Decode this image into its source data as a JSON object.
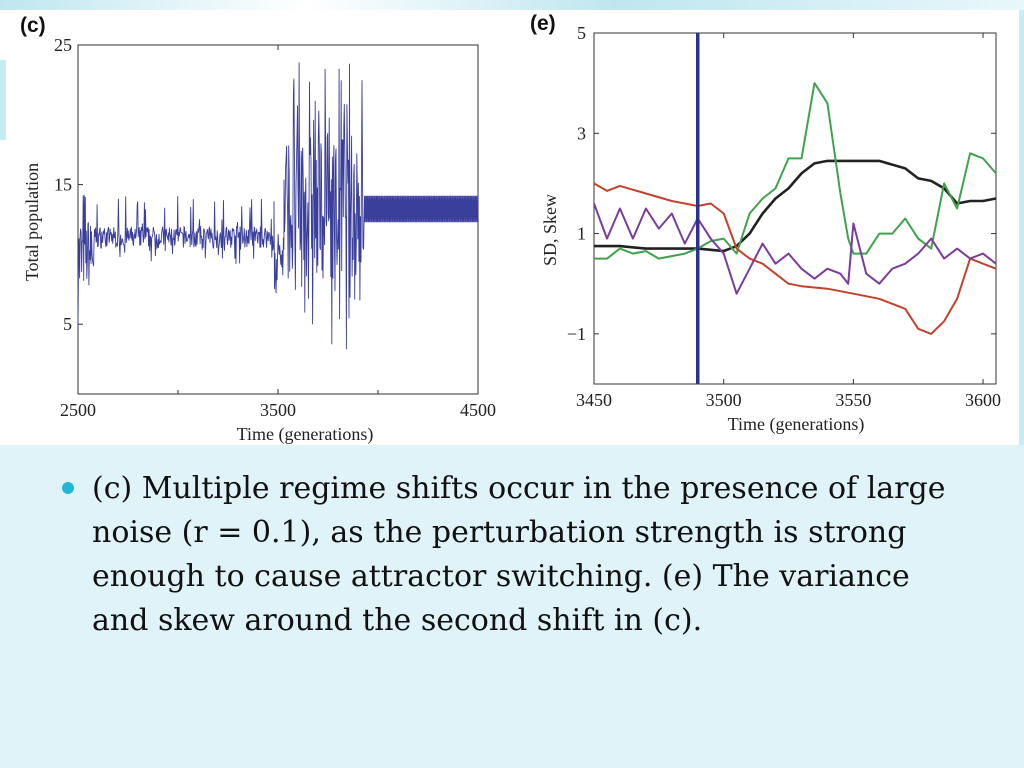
{
  "slide": {
    "bullet_text": "(c) Multiple regime shifts occur in the presence of large noise (r = 0.1), as the perturbation strength is strong enough to cause attractor switching. (e) The variance and skew around the second shift in (c).",
    "colors": {
      "background": "#dff3f8",
      "bullet": "#24b6d6"
    }
  },
  "chart_data": [
    {
      "panel": "(c)",
      "type": "line",
      "xlabel": "Time (generations)",
      "ylabel": "Total population",
      "xlim": [
        2500,
        4500
      ],
      "ylim": [
        0,
        25
      ],
      "xticks": [
        2500,
        3500,
        4500
      ],
      "yticks": [
        5,
        15,
        25
      ],
      "grid": false,
      "series": [
        {
          "color": "#3b3f9c",
          "segments": [
            {
              "x": [
                2500,
                2580
              ],
              "low": 5,
              "high": 15
            },
            {
              "x": [
                2580,
                3480
              ],
              "low": 10.0,
              "high": 13.5
            },
            {
              "x": [
                3480,
                3530
              ],
              "low": 6,
              "high": 14
            },
            {
              "x": [
                3530,
                3930
              ],
              "low": 3,
              "high": 24
            },
            {
              "x": [
                3930,
                4500
              ],
              "low": 12.3,
              "high": 14.2
            }
          ],
          "baseline": 11
        }
      ]
    },
    {
      "panel": "(e)",
      "type": "line",
      "xlabel": "Time (generations)",
      "ylabel": "SD, Skew",
      "xlim": [
        3450,
        3605
      ],
      "ylim": [
        -2,
        5
      ],
      "xticks": [
        3450,
        3500,
        3550,
        3600
      ],
      "yticks": [
        -1,
        1,
        3,
        5
      ],
      "ytick_labels": [
        "−1",
        "1",
        "3",
        "5"
      ],
      "vline_x": 3490,
      "vline_color": "#2a3190",
      "grid": false,
      "series": [
        {
          "color": "#222222",
          "x": [
            3450,
            3460,
            3470,
            3480,
            3490,
            3500,
            3505,
            3510,
            3515,
            3520,
            3525,
            3530,
            3535,
            3540,
            3545,
            3550,
            3560,
            3570,
            3575,
            3580,
            3585,
            3590,
            3595,
            3600,
            3605
          ],
          "y": [
            0.75,
            0.75,
            0.7,
            0.7,
            0.7,
            0.65,
            0.75,
            1.0,
            1.4,
            1.7,
            1.9,
            2.2,
            2.4,
            2.45,
            2.45,
            2.45,
            2.45,
            2.3,
            2.1,
            2.05,
            1.9,
            1.6,
            1.65,
            1.65,
            1.7
          ]
        },
        {
          "color": "#3fa34d",
          "x": [
            3450,
            3455,
            3460,
            3465,
            3470,
            3475,
            3480,
            3485,
            3490,
            3495,
            3500,
            3505,
            3510,
            3515,
            3520,
            3525,
            3530,
            3535,
            3540,
            3545,
            3548,
            3550,
            3555,
            3560,
            3565,
            3570,
            3575,
            3580,
            3585,
            3590,
            3595,
            3600,
            3605
          ],
          "y": [
            0.5,
            0.5,
            0.7,
            0.6,
            0.65,
            0.5,
            0.55,
            0.6,
            0.7,
            0.85,
            0.9,
            0.6,
            1.4,
            1.7,
            1.9,
            2.5,
            2.5,
            4.0,
            3.6,
            1.8,
            0.9,
            0.6,
            0.6,
            1.0,
            1.0,
            1.3,
            0.9,
            0.7,
            2.0,
            1.5,
            2.6,
            2.5,
            2.2
          ]
        },
        {
          "color": "#c1432b",
          "x": [
            3450,
            3455,
            3460,
            3470,
            3480,
            3490,
            3495,
            3500,
            3505,
            3510,
            3515,
            3520,
            3525,
            3530,
            3540,
            3550,
            3560,
            3570,
            3575,
            3580,
            3585,
            3590,
            3595,
            3600,
            3605
          ],
          "y": [
            2.0,
            1.85,
            1.95,
            1.8,
            1.65,
            1.55,
            1.6,
            1.4,
            0.7,
            0.5,
            0.4,
            0.2,
            0.0,
            -0.05,
            -0.1,
            -0.2,
            -0.3,
            -0.5,
            -0.9,
            -1.0,
            -0.75,
            -0.3,
            0.5,
            0.4,
            0.3
          ]
        },
        {
          "color": "#7a3d9c",
          "x": [
            3450,
            3455,
            3460,
            3465,
            3470,
            3475,
            3480,
            3485,
            3490,
            3495,
            3500,
            3505,
            3510,
            3515,
            3520,
            3525,
            3530,
            3535,
            3540,
            3545,
            3548,
            3550,
            3555,
            3560,
            3565,
            3570,
            3575,
            3580,
            3585,
            3590,
            3595,
            3600,
            3605
          ],
          "y": [
            1.6,
            0.9,
            1.5,
            0.9,
            1.5,
            1.1,
            1.4,
            0.8,
            1.3,
            0.9,
            0.6,
            -0.2,
            0.3,
            0.8,
            0.4,
            0.6,
            0.3,
            0.1,
            0.3,
            0.2,
            0.0,
            1.2,
            0.2,
            0.0,
            0.3,
            0.4,
            0.6,
            0.9,
            0.5,
            0.7,
            0.5,
            0.6,
            0.4
          ]
        }
      ]
    }
  ]
}
